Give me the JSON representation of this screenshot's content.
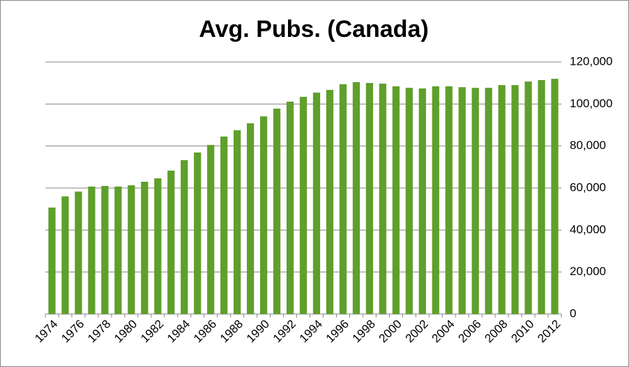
{
  "chart_data": {
    "type": "bar",
    "title": "Avg. Pubs. (Canada)",
    "categories": [
      "1974",
      null,
      "1976",
      null,
      "1978",
      null,
      "1980",
      null,
      "1982",
      null,
      "1984",
      null,
      "1986",
      null,
      "1988",
      null,
      "1990",
      null,
      "1992",
      null,
      "1994",
      null,
      "1996",
      null,
      "1998",
      null,
      "2000",
      null,
      "2002",
      null,
      "2004",
      null,
      "2006",
      null,
      "2008",
      null,
      "2010",
      null,
      "2012"
    ],
    "values": [
      50700,
      56000,
      58300,
      60700,
      61000,
      60700,
      61300,
      63000,
      64600,
      68300,
      73300,
      76900,
      80500,
      84500,
      87500,
      90800,
      94100,
      97800,
      101100,
      103400,
      105400,
      106700,
      109400,
      110400,
      110000,
      109700,
      108400,
      107700,
      107400,
      108400,
      108400,
      108000,
      107700,
      107700,
      109000,
      109000,
      110700,
      111400,
      112000
    ],
    "color": "#5f9f2b",
    "ylim": [
      0,
      120000
    ],
    "yticks": [
      0,
      {
        "value": 20000,
        "label": "20,000"
      },
      {
        "value": 40000,
        "label": "40,000"
      },
      {
        "value": 60000,
        "label": "60,000"
      },
      {
        "value": 80000,
        "label": "80,000"
      },
      {
        "value": 100000,
        "label": "100,000"
      },
      {
        "value": 120000,
        "label": "120,000"
      }
    ],
    "grid": true
  }
}
